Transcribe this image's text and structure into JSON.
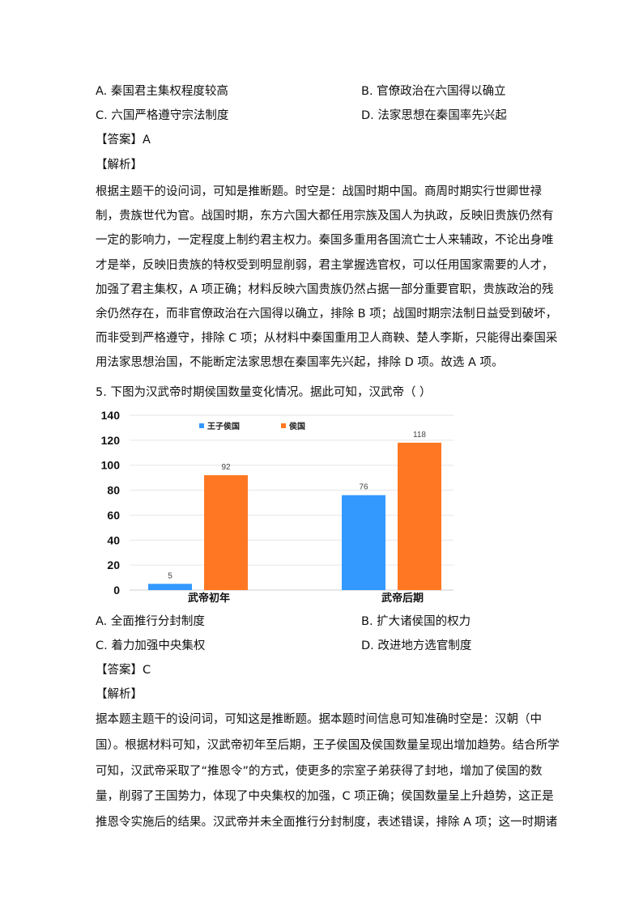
{
  "q4": {
    "options": {
      "A": "A.  秦国君主集权程度较高",
      "B": "B.  官僚政治在六国得以确立",
      "C": "C.  六国严格遵守宗法制度",
      "D": "D.  法家思想在秦国率先兴起"
    },
    "answer": "【答案】A",
    "analysis_label": "【解析】",
    "analysis_lines": [
      "根据主题干的设问词，可知是推断题。时空是：战国时期中国。商周时期实行世卿世禄",
      "制，贵族世代为官。战国时期，东方六国大都任用宗族及国人为执政，反映旧贵族仍然有",
      "一定的影响力，一定程度上制约君主权力。秦国多重用各国流亡士人来辅政，不论出身唯",
      "才是举，反映旧贵族的特权受到明显削弱，君主掌握选官权，可以任用国家需要的人才，",
      "加强了君主集权，A 项正确；材料反映六国贵族仍然占据一部分重要官职，贵族政治的残",
      "余仍然存在，而非官僚政治在六国得以确立，排除 B 项；战国时期宗法制日益受到破坏，",
      "而非受到严格遵守，排除 C 项；从材料中秦国重用卫人商鞅、楚人李斯，只能得出秦国采",
      "用法家思想治国，不能断定法家思想在秦国率先兴起，排除 D 项。故选 A 项。"
    ]
  },
  "q5": {
    "question": "5.  下图为汉武帝时期侯国数量变化情况。据此可知，汉武帝（      ）",
    "options": {
      "A": "A.  全面推行分封制度",
      "B": "B.  扩大诸侯国的权力",
      "C": "C.  着力加强中央集权",
      "D": "D.  改进地方选官制度"
    },
    "answer": "【答案】C",
    "analysis_label": "【解析】",
    "analysis_lines": [
      "据本题主题干的设问词，可知这是推断题。据本题时间信息可知准确时空是：汉朝（中",
      "国）。根据材料可知，汉武帝初年至后期，王子侯国及侯国数量呈现出增加趋势。结合所学",
      "可知，汉武帝采取了“推恩令”的方式，使更多的宗室子弟获得了封地，增加了侯国的数",
      "量，削弱了王国势力，体现了中央集权的加强，C 项正确；侯国数量呈上升趋势，这正是",
      "推恩令实施后的结果。汉武帝并未全面推行分封制度，表述错误，排除 A 项；这一时期诸"
    ]
  },
  "chart_data": {
    "type": "bar",
    "categories": [
      "武帝初年",
      "武帝后期"
    ],
    "series": [
      {
        "name": "王子侯国",
        "values": [
          5,
          76
        ],
        "color": "#3399ff"
      },
      {
        "name": "侯国",
        "values": [
          92,
          118
        ],
        "color": "#ff7722"
      }
    ],
    "ylim": [
      0,
      140
    ],
    "yticks": [
      0,
      20,
      40,
      60,
      80,
      100,
      120,
      140
    ],
    "grid": true,
    "legend": "top",
    "data_labels": true
  }
}
